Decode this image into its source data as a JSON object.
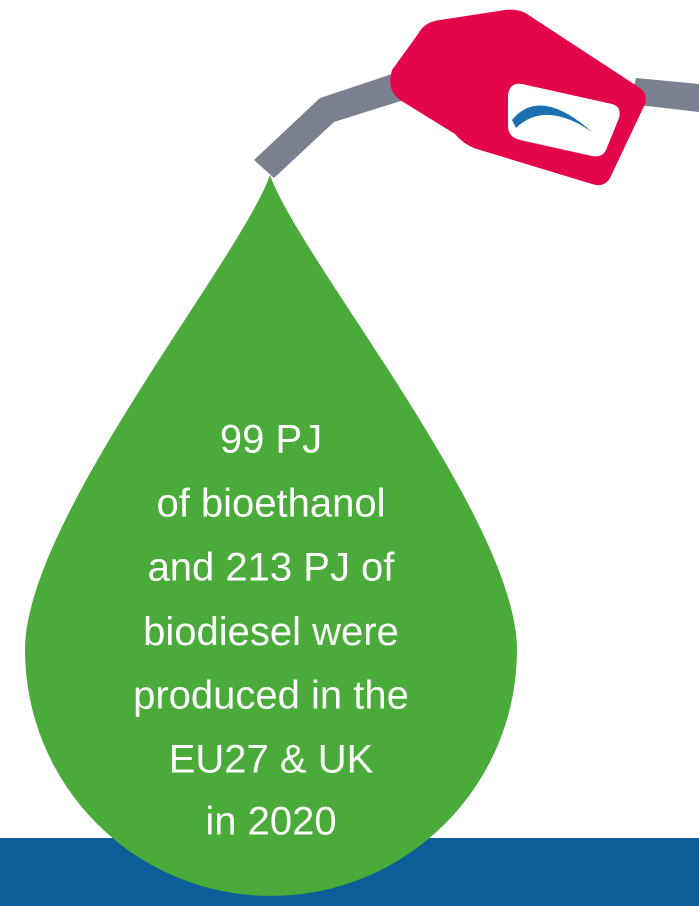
{
  "lines": [
    "99 PJ",
    "of bioethanol",
    "and 213 PJ of",
    "biodiesel"
  ],
  "rest": [
    "were",
    "produced in the",
    "EU27 & UK",
    "in 2020"
  ]
}
